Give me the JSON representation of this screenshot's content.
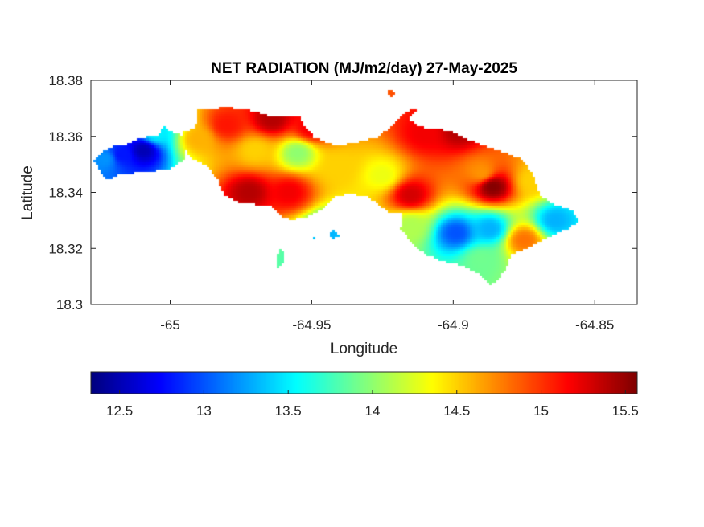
{
  "chart_data": {
    "type": "heatmap",
    "title": "NET RADIATION (MJ/m2/day) 27-May-2025",
    "xlabel": "Longitude",
    "ylabel": "Latitude",
    "xlim": [
      -65.028,
      -64.835
    ],
    "ylim": [
      18.3,
      18.38
    ],
    "xticks": [
      -65,
      -64.95,
      -64.9,
      -64.85
    ],
    "xtick_labels": [
      "-65",
      "-64.95",
      "-64.9",
      "-64.85"
    ],
    "yticks": [
      18.3,
      18.32,
      18.34,
      18.36,
      18.38
    ],
    "ytick_labels": [
      "18.3",
      "18.32",
      "18.34",
      "18.36",
      "18.38"
    ],
    "grid": false,
    "colormap": "jet",
    "colorbar": {
      "orientation": "horizontal",
      "location": "below",
      "clim": [
        12.33,
        15.57
      ],
      "ticks": [
        12.5,
        13,
        13.5,
        14,
        14.5,
        15,
        15.5
      ],
      "tick_labels": [
        "12.5",
        "13",
        "13.5",
        "14",
        "14.5",
        "15",
        "15.5"
      ]
    },
    "fields": [
      {
        "lon": -65.0095,
        "lat": 18.355,
        "value": 12.5
      },
      {
        "lon": -65.017,
        "lat": 18.3535,
        "value": 12.8
      },
      {
        "lon": -65.005,
        "lat": 18.361,
        "value": 13.5
      },
      {
        "lon": -65.023,
        "lat": 18.352,
        "value": 13.2
      },
      {
        "lon": -64.99,
        "lat": 18.359,
        "value": 14.6
      },
      {
        "lon": -64.98,
        "lat": 18.364,
        "value": 15.1
      },
      {
        "lon": -64.964,
        "lat": 18.366,
        "value": 15.4
      },
      {
        "lon": -64.95,
        "lat": 18.363,
        "value": 15.2
      },
      {
        "lon": -64.955,
        "lat": 18.354,
        "value": 14.0
      },
      {
        "lon": -64.97,
        "lat": 18.355,
        "value": 14.5
      },
      {
        "lon": -64.972,
        "lat": 18.34,
        "value": 15.4
      },
      {
        "lon": -64.958,
        "lat": 18.34,
        "value": 15.2
      },
      {
        "lon": -64.94,
        "lat": 18.349,
        "value": 14.5
      },
      {
        "lon": -64.925,
        "lat": 18.346,
        "value": 14.3
      },
      {
        "lon": -64.915,
        "lat": 18.339,
        "value": 15.3
      },
      {
        "lon": -64.91,
        "lat": 18.361,
        "value": 15.2
      },
      {
        "lon": -64.898,
        "lat": 18.362,
        "value": 15.4
      },
      {
        "lon": -64.89,
        "lat": 18.347,
        "value": 14.7
      },
      {
        "lon": -64.886,
        "lat": 18.342,
        "value": 15.55
      },
      {
        "lon": -64.872,
        "lat": 18.344,
        "value": 14.5
      },
      {
        "lon": -64.899,
        "lat": 18.3255,
        "value": 13.0
      },
      {
        "lon": -64.887,
        "lat": 18.327,
        "value": 13.3
      },
      {
        "lon": -64.864,
        "lat": 18.33,
        "value": 13.3
      },
      {
        "lon": -64.915,
        "lat": 18.328,
        "value": 14.1
      },
      {
        "lon": -64.875,
        "lat": 18.323,
        "value": 14.8
      },
      {
        "lon": -64.89,
        "lat": 18.316,
        "value": 13.9
      },
      {
        "lon": -64.945,
        "lat": 18.325,
        "value": 13.3
      },
      {
        "lon": -64.955,
        "lat": 18.316,
        "value": 13.8
      }
    ]
  }
}
